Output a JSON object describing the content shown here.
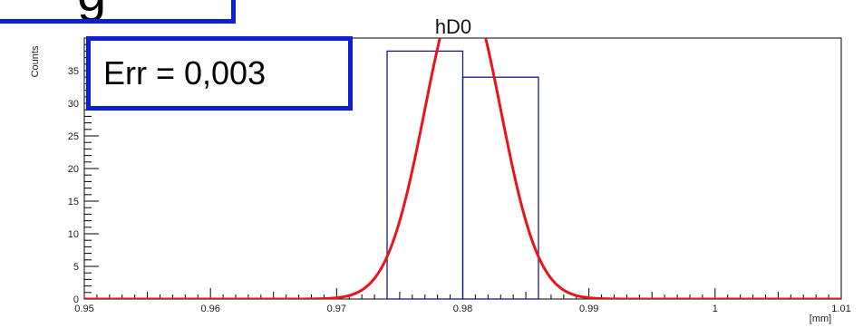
{
  "chart_data": {
    "type": "histogram",
    "title": "hD0",
    "xlabel": "[mm]",
    "ylabel": "Counts",
    "xlim": [
      0.95,
      1.01
    ],
    "ylim": [
      0,
      40
    ],
    "x_ticks": [
      {
        "value": 0.95,
        "label": "0.95"
      },
      {
        "value": 0.96,
        "label": "0.96"
      },
      {
        "value": 0.97,
        "label": "0.97"
      },
      {
        "value": 0.98,
        "label": "0.98"
      },
      {
        "value": 0.99,
        "label": "0.99"
      },
      {
        "value": 1.0,
        "label": "1"
      },
      {
        "value": 1.01,
        "label": "1.01"
      }
    ],
    "y_ticks": [
      0,
      5,
      10,
      15,
      20,
      25,
      30,
      35
    ],
    "bins": [
      {
        "low": 0.974,
        "high": 0.98,
        "count": 38
      },
      {
        "low": 0.98,
        "high": 0.986,
        "count": 34
      }
    ],
    "fit": {
      "type": "gaussian",
      "mean": 0.98,
      "sigma": 0.003,
      "amplitude": 48
    },
    "colors": {
      "histogram": "#1a1a7a",
      "fit": "#e8141c",
      "annotation_border": "#0a1fd6"
    }
  },
  "annotations": {
    "err_text": "Err = 0,003",
    "corner_text": "g"
  }
}
